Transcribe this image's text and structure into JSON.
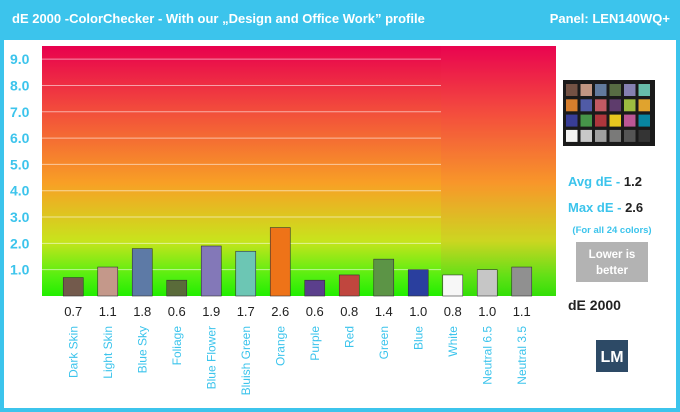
{
  "header": {
    "title": "dE 2000 -ColorChecker - With our „Design and Office Work” profile",
    "panel": "Panel: LEN140WQ+"
  },
  "stats": {
    "avg_label": "Avg dE - ",
    "avg_value": "1.2",
    "max_label": "Max dE - ",
    "max_value": "2.6",
    "note": "(For all 24 colors)",
    "lower_is_better": [
      "Lower is",
      "better"
    ],
    "unit": "dE 2000",
    "logo": "LM"
  },
  "colors": {
    "accent": "#3cc4ec",
    "bar_outline": "#333333"
  },
  "chart_data": {
    "type": "bar",
    "title": "dE 2000 -ColorChecker - With our „Design and Office Work” profile",
    "ylim": [
      0,
      9.5
    ],
    "yticks": [
      "1.0",
      "2.0",
      "3.0",
      "4.0",
      "5.0",
      "6.0",
      "7.0",
      "8.0",
      "9.0"
    ],
    "categories": [
      "Dark Skin",
      "Light Skin",
      "Blue Sky",
      "Foliage",
      "Blue Flower",
      "Bluish Green",
      "Orange",
      "Purple",
      "Red",
      "Green",
      "Blue",
      "White",
      "Neutral 6.5",
      "Neutral 3.5"
    ],
    "values": [
      0.7,
      1.1,
      1.8,
      0.6,
      1.9,
      1.7,
      2.6,
      0.6,
      0.8,
      1.4,
      1.0,
      0.8,
      1.0,
      1.1
    ],
    "value_labels": [
      "0.7",
      "1.1",
      "1.8",
      "0.6",
      "1.9",
      "1.7",
      "2.6",
      "0.6",
      "0.8",
      "1.4",
      "1.0",
      "0.8",
      "1.0",
      "1.1"
    ],
    "bar_colors": [
      "#735a4c",
      "#c4988a",
      "#5d7aa6",
      "#5a6b3a",
      "#8378b8",
      "#6cc6b4",
      "#ee7318",
      "#5b3f8c",
      "#c0463e",
      "#5c9446",
      "#2a3f9e",
      "#f7f7f7",
      "#c6c6c6",
      "#909090"
    ],
    "grid": true
  },
  "checker_colors": [
    "#735244",
    "#c29682",
    "#627a9d",
    "#576c43",
    "#8580b1",
    "#67bdaa",
    "#d67e2c",
    "#505ba6",
    "#c15a63",
    "#5e3c6c",
    "#9dbc40",
    "#e0a32e",
    "#383d96",
    "#469449",
    "#af363c",
    "#e7c71f",
    "#bb5695",
    "#0885a1",
    "#f3f3f2",
    "#c8c8c8",
    "#a0a0a0",
    "#7a7a79",
    "#555555",
    "#343434"
  ]
}
